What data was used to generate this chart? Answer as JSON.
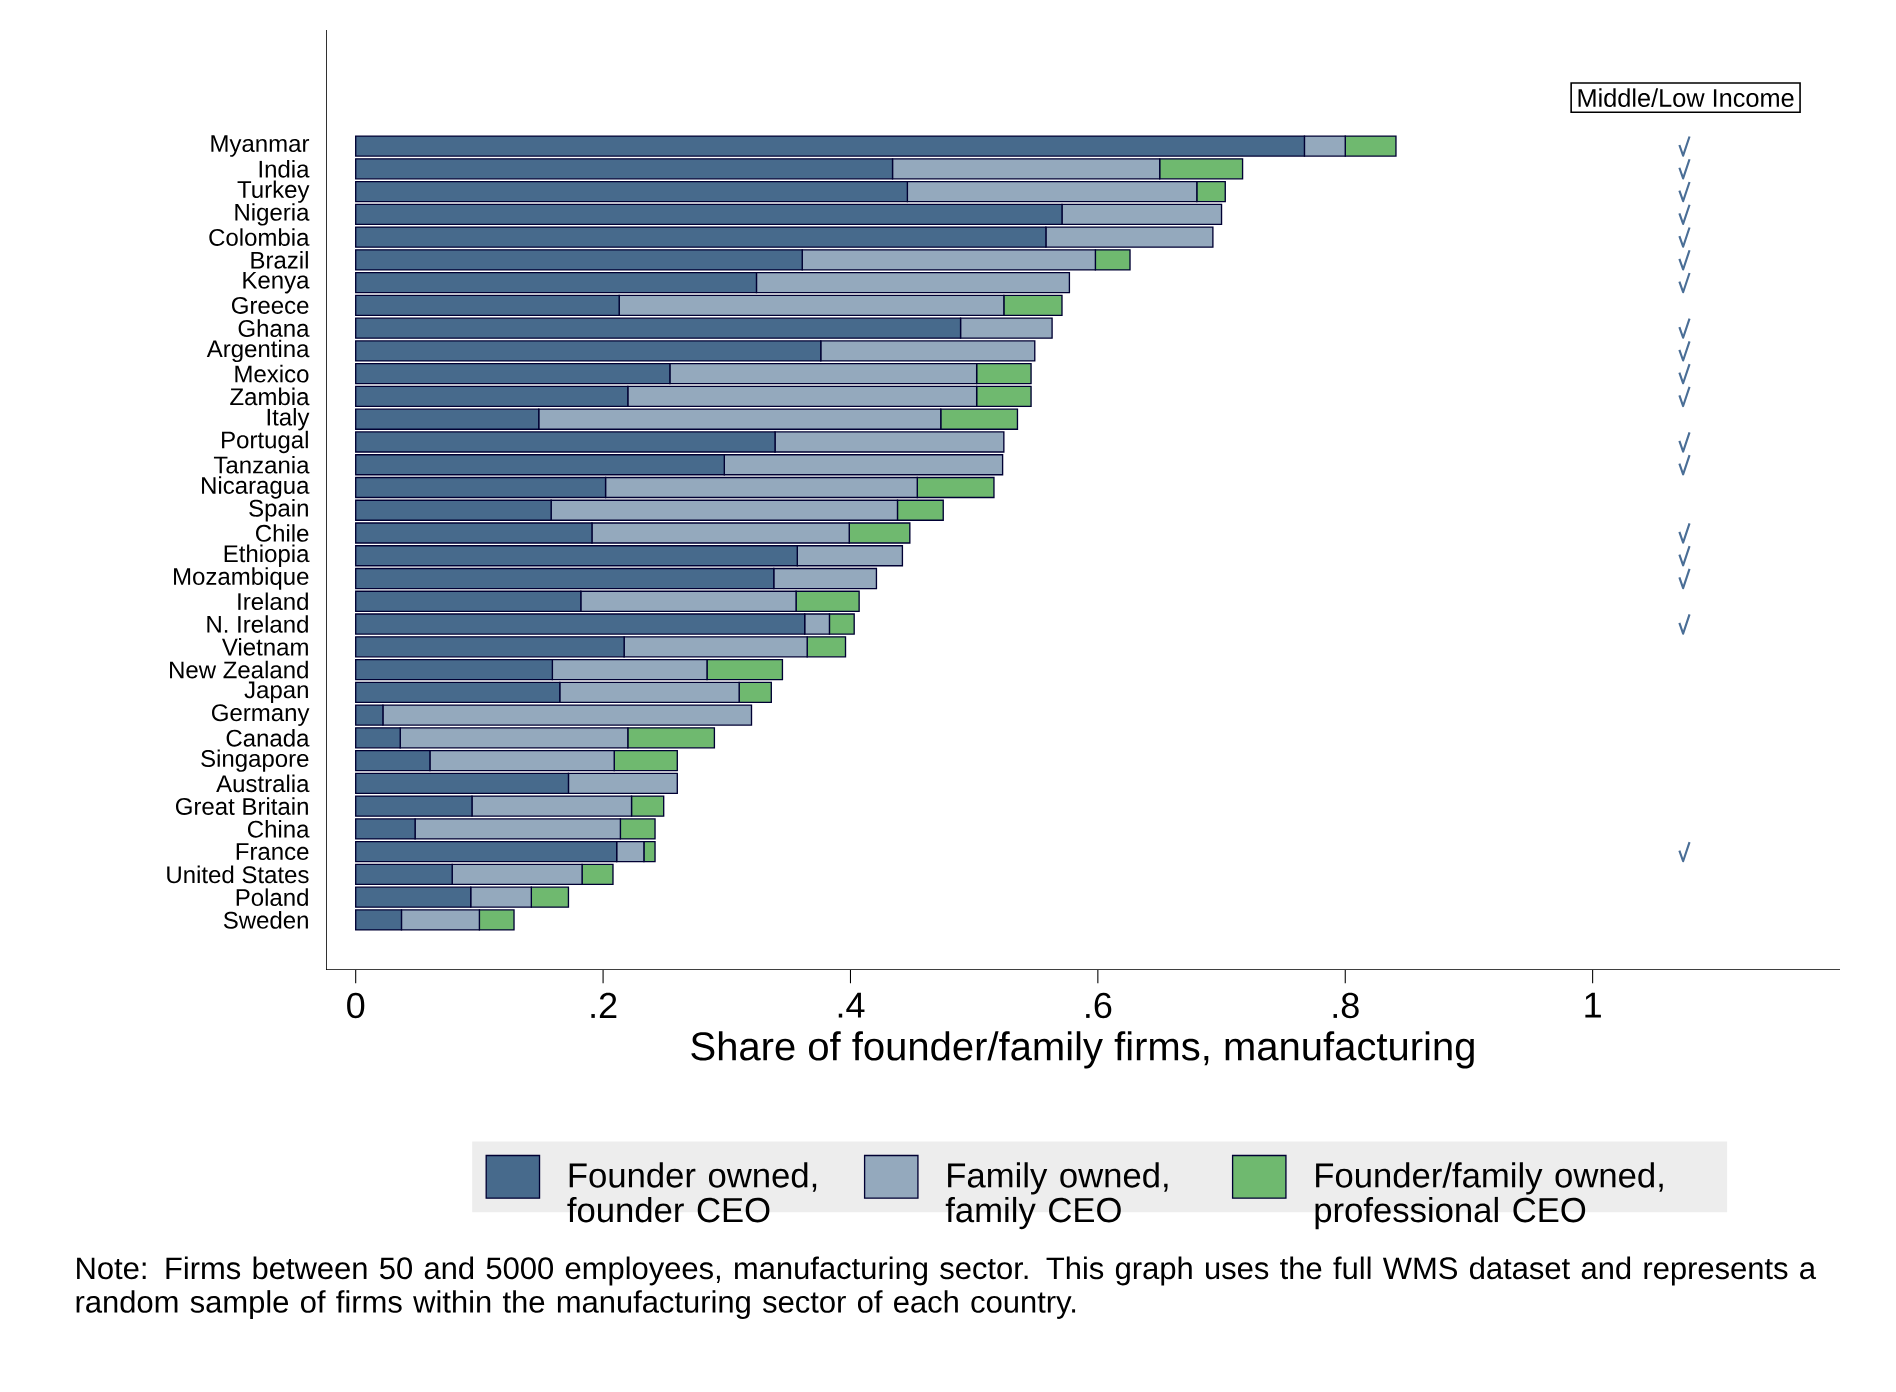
{
  "chart_data": {
    "type": "bar",
    "orientation": "horizontal",
    "stacked": true,
    "categories": [
      "Myanmar",
      "India",
      "Turkey",
      "Nigeria",
      "Colombia",
      "Brazil",
      "Kenya",
      "Greece",
      "Ghana",
      "Argentina",
      "Mexico",
      "Zambia",
      "Italy",
      "Portugal",
      "Tanzania",
      "Nicaragua",
      "Spain",
      "Chile",
      "Ethiopia",
      "Mozambique",
      "Ireland",
      "N. Ireland",
      "Vietnam",
      "New Zealand",
      "Japan",
      "Germany",
      "Canada",
      "Singapore",
      "Australia",
      "Great Britain",
      "China",
      "France",
      "United States",
      "Poland",
      "Sweden"
    ],
    "series": [
      {
        "name": "Founder owned, founder CEO",
        "color": "#476a8c",
        "values": [
          0.767,
          0.434,
          0.446,
          0.571,
          0.558,
          0.361,
          0.324,
          0.213,
          0.489,
          0.376,
          0.254,
          0.22,
          0.148,
          0.339,
          0.298,
          0.202,
          0.158,
          0.191,
          0.357,
          0.338,
          0.182,
          0.363,
          0.217,
          0.159,
          0.165,
          0.022,
          0.036,
          0.06,
          0.172,
          0.094,
          0.048,
          0.211,
          0.078,
          0.093,
          0.037
        ]
      },
      {
        "name": "Family owned, family CEO",
        "color": "#94a9bd",
        "values": [
          0.033,
          0.216,
          0.234,
          0.129,
          0.135,
          0.237,
          0.253,
          0.311,
          0.074,
          0.173,
          0.248,
          0.282,
          0.325,
          0.185,
          0.225,
          0.252,
          0.28,
          0.208,
          0.085,
          0.083,
          0.174,
          0.02,
          0.148,
          0.125,
          0.145,
          0.298,
          0.184,
          0.149,
          0.088,
          0.129,
          0.166,
          0.022,
          0.105,
          0.049,
          0.063
        ]
      },
      {
        "name": "Founder/family owned, professional CEO",
        "color": "#6fb96f",
        "values": [
          0.041,
          0.067,
          0.023,
          0,
          0,
          0.028,
          0,
          0.047,
          0,
          0,
          0.044,
          0.044,
          0.062,
          0,
          0,
          0.062,
          0.037,
          0.049,
          0,
          0,
          0.051,
          0.02,
          0.031,
          0.061,
          0.026,
          0,
          0.07,
          0.051,
          0,
          0.026,
          0.028,
          0.009,
          0.025,
          0.03,
          0.028
        ]
      },
      {
        "name": "Middle/Low Income",
        "type": "scatter",
        "color": "#4a6e96",
        "values": [
          1.074,
          1.074,
          1.074,
          1.074,
          1.074,
          1.074,
          1.074,
          null,
          1.074,
          1.074,
          1.074,
          1.074,
          null,
          1.074,
          1.074,
          null,
          null,
          1.074,
          1.074,
          1.074,
          null,
          1.074,
          null,
          null,
          null,
          null,
          null,
          null,
          null,
          null,
          null,
          1.074,
          null,
          null,
          null
        ]
      }
    ],
    "xlim": [
      -0.024,
      1.2
    ],
    "xticks": [
      0,
      {
        "value": 0.2,
        "label": ".2"
      },
      {
        "value": 0.4,
        "label": ".4"
      },
      {
        "value": 0.6,
        "label": ".6"
      },
      {
        "value": 0.8,
        "label": ".8"
      },
      1
    ],
    "xlabel": "Share of founder/family firms, manufacturing",
    "legend": "bottom",
    "annotations": [
      "Note: Firms between 50 and 5000 employees, manufacturing sector. This graph uses the full WMS dataset and represents a random sample of firms within the manufacturing sector of each country."
    ]
  }
}
